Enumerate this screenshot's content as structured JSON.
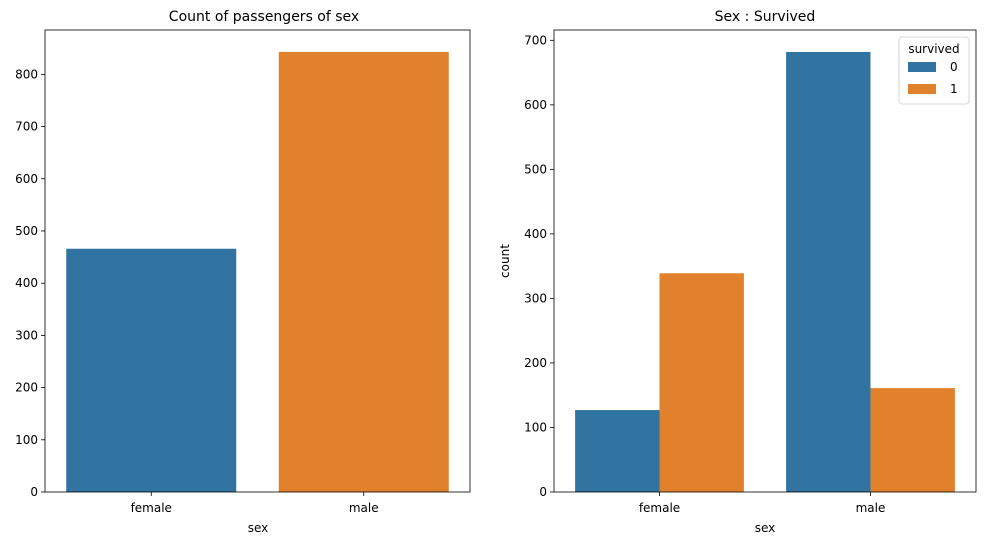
{
  "chart_data": [
    {
      "type": "bar",
      "title": "Count of passengers of sex",
      "xlabel": "sex",
      "ylabel": "",
      "categories": [
        "female",
        "male"
      ],
      "values": [
        466,
        843
      ],
      "bar_colors": [
        "#3274a1",
        "#e1812c"
      ],
      "ylim": [
        0,
        885
      ],
      "yticks": [
        0,
        100,
        200,
        300,
        400,
        500,
        600,
        700,
        800
      ],
      "grid": false
    },
    {
      "type": "bar",
      "title": "Sex : Survived",
      "xlabel": "sex",
      "ylabel": "count",
      "categories": [
        "female",
        "male"
      ],
      "series": [
        {
          "name": "0",
          "values": [
            127,
            682
          ],
          "color": "#3274a1"
        },
        {
          "name": "1",
          "values": [
            339,
            161
          ],
          "color": "#e1812c"
        }
      ],
      "ylim": [
        0,
        716
      ],
      "yticks": [
        0,
        100,
        200,
        300,
        400,
        500,
        600,
        700
      ],
      "legend_title": "survived",
      "legend_placement": "top-right",
      "grid": false
    }
  ]
}
